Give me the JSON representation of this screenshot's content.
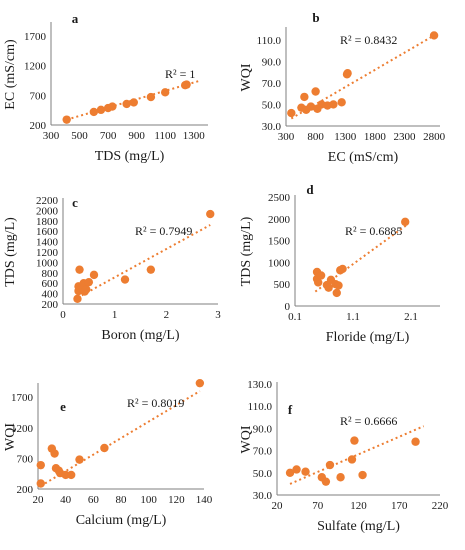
{
  "chart_data": [
    {
      "type": "scatter",
      "panel": "a",
      "xlabel": "TDS (mg/L)",
      "ylabel": "EC (mS/cm)",
      "xlim": [
        300,
        1400
      ],
      "ylim": [
        200,
        1900
      ],
      "xticks": [
        300,
        500,
        700,
        900,
        1100,
        1300
      ],
      "yticks": [
        200,
        700,
        1200,
        1700
      ],
      "r2_label": "R² = 1",
      "points": [
        [
          410,
          290
        ],
        [
          600,
          420
        ],
        [
          650,
          455
        ],
        [
          700,
          485
        ],
        [
          730,
          510
        ],
        [
          830,
          555
        ],
        [
          880,
          580
        ],
        [
          1000,
          670
        ],
        [
          1100,
          750
        ],
        [
          1240,
          870
        ],
        [
          1250,
          880
        ]
      ],
      "trendline": [
        [
          410,
          290
        ],
        [
          1350,
          950
        ]
      ]
    },
    {
      "type": "scatter",
      "panel": "b",
      "xlabel": "EC (mS/cm)",
      "ylabel": "WQI",
      "xlim": [
        300,
        2900
      ],
      "ylim": [
        30,
        120
      ],
      "xticks": [
        300,
        800,
        1300,
        1800,
        2300,
        2800
      ],
      "yticks": [
        "30.0",
        "50.0",
        "70.0",
        "90.0",
        "110.0"
      ],
      "r2_label": "R² = 0.8432",
      "points": [
        [
          390,
          42
        ],
        [
          560,
          47
        ],
        [
          610,
          57
        ],
        [
          640,
          45
        ],
        [
          720,
          48
        ],
        [
          800,
          62
        ],
        [
          830,
          46
        ],
        [
          900,
          50
        ],
        [
          1000,
          49
        ],
        [
          1100,
          50
        ],
        [
          1240,
          52
        ],
        [
          1330,
          78
        ],
        [
          1340,
          79
        ],
        [
          2800,
          114
        ]
      ],
      "trendline": [
        [
          390,
          37
        ],
        [
          2800,
          114
        ]
      ]
    },
    {
      "type": "scatter",
      "panel": "c",
      "xlabel": "Boron (mg/L)",
      "ylabel": "TDS (mg/L)",
      "xlim": [
        0,
        3
      ],
      "ylim": [
        200,
        2200
      ],
      "xticks": [
        0,
        1,
        2,
        3
      ],
      "yticks": [
        200,
        400,
        600,
        800,
        1000,
        1200,
        1400,
        1600,
        1800,
        2000,
        2200
      ],
      "r2_label": "R² = 0.7949",
      "points": [
        [
          0.28,
          300
        ],
        [
          0.3,
          450
        ],
        [
          0.3,
          540
        ],
        [
          0.32,
          860
        ],
        [
          0.35,
          500
        ],
        [
          0.37,
          520
        ],
        [
          0.4,
          600
        ],
        [
          0.42,
          440
        ],
        [
          0.45,
          480
        ],
        [
          0.5,
          620
        ],
        [
          0.6,
          760
        ],
        [
          1.2,
          670
        ],
        [
          1.7,
          860
        ],
        [
          2.85,
          1930
        ]
      ],
      "trendline": [
        [
          0.28,
          320
        ],
        [
          2.85,
          1720
        ]
      ]
    },
    {
      "type": "scatter",
      "panel": "d",
      "xlabel": "Floride (mg/L)",
      "ylabel": "TDS (mg/L)",
      "xlim": [
        0.1,
        2.6
      ],
      "ylim": [
        0,
        2500
      ],
      "xticks": [
        "0.1",
        "1.1",
        "2.1"
      ],
      "yticks": [
        0,
        500,
        1000,
        1500,
        2000,
        2500
      ],
      "r2_label": "R² = 0.6885",
      "points": [
        [
          0.48,
          780
        ],
        [
          0.48,
          620
        ],
        [
          0.5,
          540
        ],
        [
          0.55,
          700
        ],
        [
          0.65,
          480
        ],
        [
          0.68,
          420
        ],
        [
          0.72,
          600
        ],
        [
          0.8,
          500
        ],
        [
          0.82,
          300
        ],
        [
          0.85,
          470
        ],
        [
          0.88,
          820
        ],
        [
          0.92,
          850
        ],
        [
          2.0,
          1930
        ]
      ],
      "trendline": [
        [
          0.45,
          330
        ],
        [
          2.05,
          1880
        ]
      ]
    },
    {
      "type": "scatter",
      "panel": "e",
      "xlabel": "Calcium (mg/L)",
      "ylabel": "WQI",
      "xlim": [
        20,
        140
      ],
      "ylim": [
        200,
        1900
      ],
      "xticks": [
        20,
        40,
        60,
        80,
        100,
        120,
        140
      ],
      "yticks": [
        200,
        700,
        1200,
        1700
      ],
      "r2_label": "R² = 0.8019",
      "points": [
        [
          22,
          290
        ],
        [
          22,
          590
        ],
        [
          30,
          860
        ],
        [
          32,
          780
        ],
        [
          33,
          540
        ],
        [
          35,
          500
        ],
        [
          36,
          460
        ],
        [
          40,
          430
        ],
        [
          44,
          430
        ],
        [
          50,
          680
        ],
        [
          68,
          870
        ],
        [
          137,
          1930
        ]
      ],
      "trendline": [
        [
          22,
          250
        ],
        [
          137,
          1800
        ]
      ]
    },
    {
      "type": "scatter",
      "panel": "f",
      "xlabel": "Sulfate (mg/L)",
      "ylabel": "WQI",
      "xlim": [
        20,
        220
      ],
      "ylim": [
        30,
        130
      ],
      "xticks": [
        20,
        70,
        120,
        170,
        220
      ],
      "yticks": [
        "30.0",
        "50.0",
        "70.0",
        "90.0",
        "110.0",
        "130.0"
      ],
      "r2_label": "R² = 0.6666",
      "points": [
        [
          36,
          50
        ],
        [
          44,
          53
        ],
        [
          55,
          51
        ],
        [
          75,
          46
        ],
        [
          80,
          42
        ],
        [
          85,
          57
        ],
        [
          98,
          46
        ],
        [
          112,
          62
        ],
        [
          115,
          79
        ],
        [
          125,
          48
        ],
        [
          190,
          78
        ]
      ],
      "trendline": [
        [
          36,
          40
        ],
        [
          200,
          92
        ]
      ]
    }
  ]
}
